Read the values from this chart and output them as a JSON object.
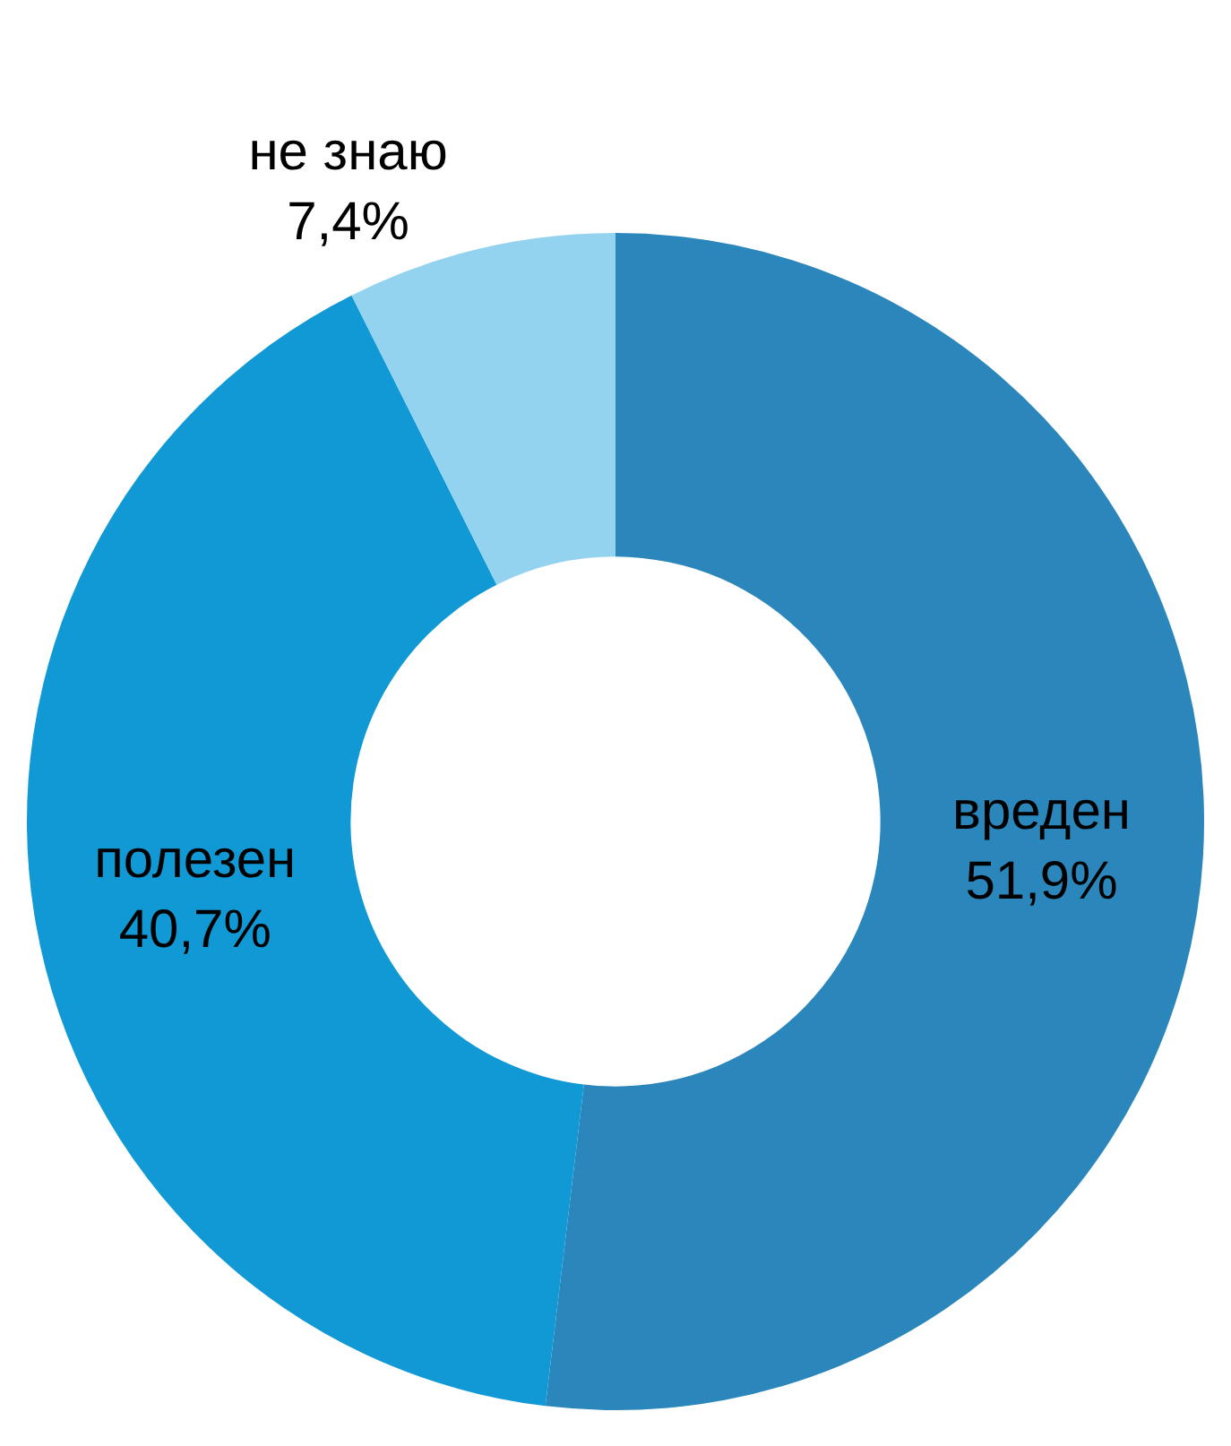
{
  "chart_data": {
    "type": "donut",
    "categories": [
      "вреден",
      "полезен",
      "не знаю"
    ],
    "values": [
      51.9,
      40.7,
      7.4
    ],
    "value_labels": [
      "51,9%",
      "40,7%",
      "7,4%"
    ],
    "colors": [
      "#2a86bb",
      "#1199d5",
      "#93d3ef"
    ],
    "legend": false
  }
}
